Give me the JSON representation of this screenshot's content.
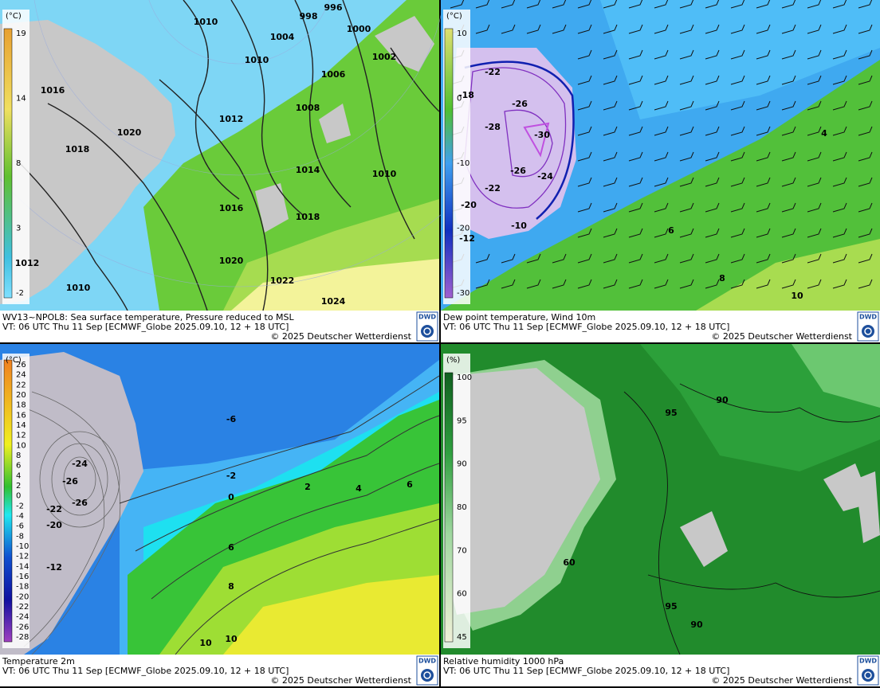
{
  "panels": [
    {
      "title": "WV13~NPOL8: Sea surface temperature,  Pressure reduced to MSL",
      "valid_time": "VT: 06 UTC Thu  11 Sep [ECMWF_Globe 2025.09.10, 12 + 18 UTC]",
      "copyright": "© 2025 Deutscher Wetterdienst",
      "logo": "DWD",
      "colorbar": {
        "unit": "(°C)",
        "labels": [
          19,
          14,
          8,
          3,
          -2
        ]
      },
      "contour_labels": [
        1010,
        998,
        996,
        1004,
        1000,
        1002,
        1010,
        1006,
        1016,
        1008,
        1012,
        1020,
        1018,
        1014,
        1010,
        1016,
        1018,
        1020,
        1022,
        1024,
        1012,
        1010
      ]
    },
    {
      "title": "Dew point temperature, Wind 10m",
      "valid_time": "VT: 06 UTC Thu  11 Sep [ECMWF_Globe 2025.09.10, 12 + 18 UTC]",
      "copyright": "© 2025 Deutscher Wetterdienst",
      "logo": "DWD",
      "colorbar": {
        "unit": "(°C)",
        "labels": [
          10,
          0,
          -10,
          -20,
          -30
        ]
      },
      "contour_labels": [
        -22,
        -26,
        -28,
        -30,
        -26,
        -24,
        -22,
        -18,
        -20,
        -10,
        -12,
        10,
        8,
        6,
        4
      ]
    },
    {
      "title": "Temperature 2m",
      "valid_time": "VT: 06 UTC Thu  11 Sep [ECMWF_Globe 2025.09.10, 12 + 18 UTC]",
      "copyright": "© 2025 Deutscher Wetterdienst",
      "logo": "DWD",
      "colorbar": {
        "unit": "(°C)",
        "labels": [
          26,
          24,
          22,
          20,
          18,
          16,
          14,
          12,
          10,
          8,
          6,
          4,
          2,
          0,
          -2,
          -4,
          -6,
          -8,
          -10,
          -12,
          -14,
          -16,
          -18,
          -20,
          -22,
          -24,
          -26,
          -28
        ]
      },
      "contour_labels": [
        -6,
        -2,
        0,
        2,
        4,
        6,
        8,
        10,
        10,
        -24,
        -26,
        -22,
        -26,
        -20,
        -12,
        6
      ]
    },
    {
      "title": "Relative humidity 1000 hPa",
      "valid_time": "VT: 06 UTC Thu  11 Sep [ECMWF_Globe 2025.09.10, 12 + 18 UTC]",
      "copyright": "© 2025 Deutscher Wetterdienst",
      "logo": "DWD",
      "colorbar": {
        "unit": "(%)",
        "labels": [
          100,
          95,
          90,
          80,
          70,
          60,
          45
        ]
      },
      "contour_labels": [
        95,
        90,
        60,
        95,
        90
      ]
    }
  ]
}
